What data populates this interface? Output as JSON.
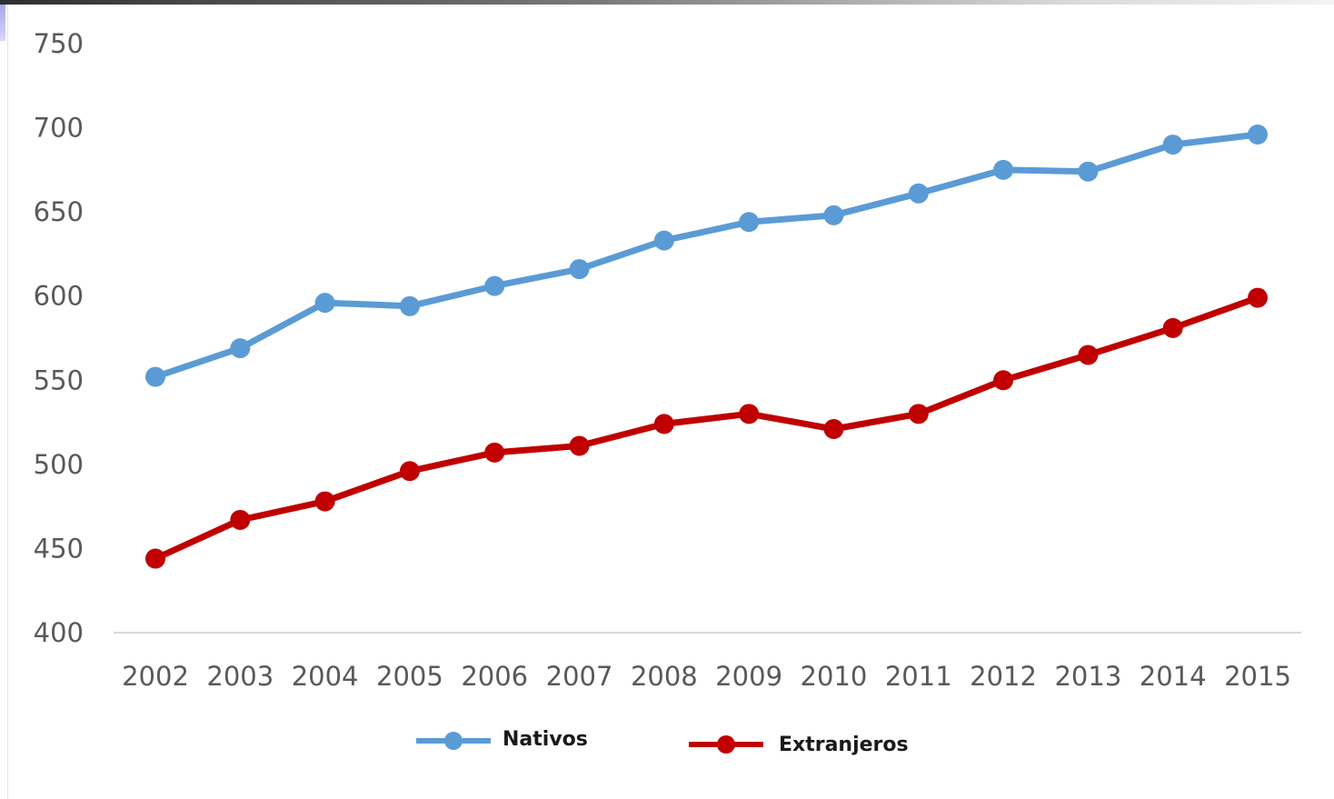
{
  "chart_data": {
    "type": "line",
    "title": "",
    "xlabel": "",
    "ylabel": "",
    "categories": [
      "2002",
      "2003",
      "2004",
      "2005",
      "2006",
      "2007",
      "2008",
      "2009",
      "2010",
      "2011",
      "2012",
      "2013",
      "2014",
      "2015"
    ],
    "ylim": [
      400,
      750
    ],
    "yticks": [
      "400",
      "450",
      "500",
      "550",
      "600",
      "650",
      "700",
      "750"
    ],
    "series": [
      {
        "name": "Nativos",
        "color": "#5b9bd5",
        "values": [
          552,
          569,
          596,
          594,
          606,
          616,
          633,
          644,
          648,
          661,
          675,
          674,
          690,
          696
        ]
      },
      {
        "name": "Extranjeros",
        "color": "#c00000",
        "values": [
          444,
          467,
          478,
          496,
          507,
          511,
          524,
          530,
          521,
          530,
          550,
          565,
          581,
          599
        ]
      }
    ],
    "grid": "baseline only",
    "legend": "bottom"
  }
}
